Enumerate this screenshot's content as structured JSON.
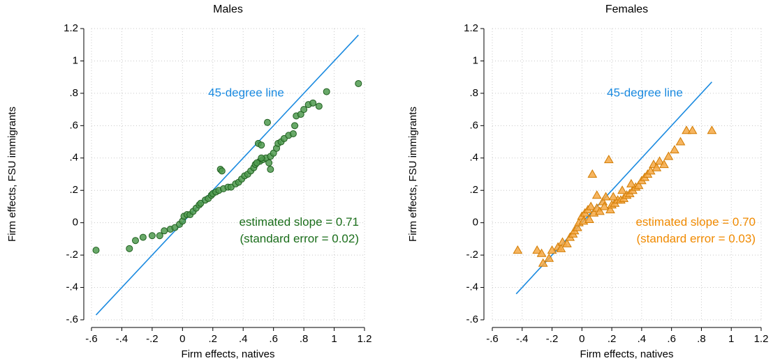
{
  "chart_data": [
    {
      "type": "scatter",
      "title": "Males",
      "xlabel": "Firm effects, natives",
      "ylabel": "Firm effects, FSU immigrants",
      "marker": "circle",
      "color": "#4f9a4f",
      "edge_color": "#1f5f1f",
      "text_color": "#1b6e1b",
      "grid": true,
      "xlim": [
        -0.6,
        1.2
      ],
      "ylim": [
        -0.6,
        1.2
      ],
      "xticks": [
        {
          "value": -0.6,
          "label": "-.6"
        },
        {
          "value": -0.4,
          "label": "-.4"
        },
        {
          "value": -0.2,
          "label": "-.2"
        },
        0,
        {
          "value": 0.2,
          "label": ".2"
        },
        {
          "value": 0.4,
          "label": ".4"
        },
        {
          "value": 0.6,
          "label": ".6"
        },
        {
          "value": 0.8,
          "label": ".8"
        },
        1,
        1.2
      ],
      "yticks": [
        {
          "value": -0.6,
          "label": "-.6"
        },
        {
          "value": -0.4,
          "label": "-.4"
        },
        {
          "value": -0.2,
          "label": "-.2"
        },
        0,
        {
          "value": 0.2,
          "label": ".2"
        },
        {
          "value": 0.4,
          "label": ".4"
        },
        {
          "value": 0.6,
          "label": ".6"
        },
        {
          "value": 0.8,
          "label": ".8"
        },
        1,
        1.2
      ],
      "x": [
        -0.57,
        -0.35,
        -0.31,
        -0.26,
        -0.2,
        -0.15,
        -0.12,
        -0.08,
        -0.05,
        -0.02,
        0,
        0.01,
        0.03,
        0.05,
        0.07,
        0.09,
        0.11,
        0.12,
        0.15,
        0.17,
        0.19,
        0.2,
        0.22,
        0.24,
        0.25,
        0.26,
        0.27,
        0.3,
        0.32,
        0.35,
        0.37,
        0.39,
        0.41,
        0.43,
        0.45,
        0.47,
        0.48,
        0.5,
        0.52,
        0.51,
        0.53,
        0.55,
        0.56,
        0.57,
        0.58,
        0.6,
        0.62,
        0.63,
        0.65,
        0.67,
        0.7,
        0.73,
        0.74,
        0.75,
        0.78,
        0.8,
        0.83,
        0.86,
        0.9,
        0.95,
        1.16,
        0.52,
        0.58,
        0.49
      ],
      "values": [
        -0.17,
        -0.16,
        -0.11,
        -0.09,
        -0.08,
        -0.08,
        -0.05,
        -0.04,
        -0.03,
        -0.01,
        0.01,
        0.04,
        0.05,
        0.05,
        0.07,
        0.09,
        0.11,
        0.12,
        0.14,
        0.15,
        0.17,
        0.18,
        0.19,
        0.2,
        0.33,
        0.32,
        0.21,
        0.22,
        0.22,
        0.24,
        0.25,
        0.27,
        0.29,
        0.3,
        0.32,
        0.34,
        0.36,
        0.49,
        0.48,
        0.38,
        0.39,
        0.4,
        0.62,
        0.37,
        0.41,
        0.43,
        0.46,
        0.49,
        0.5,
        0.52,
        0.54,
        0.55,
        0.6,
        0.66,
        0.67,
        0.7,
        0.73,
        0.74,
        0.72,
        0.81,
        0.86,
        0.4,
        0.33,
        0.37
      ],
      "reference_line": {
        "label": "45-degree line",
        "color": "#1a8ae0",
        "x": [
          -0.57,
          1.16
        ],
        "y": [
          -0.57,
          1.16
        ]
      },
      "annotations": [
        "estimated slope = 0.71",
        "(standard error = 0.02)"
      ]
    },
    {
      "type": "scatter",
      "title": "Females",
      "xlabel": "Firm effects, natives",
      "ylabel": "Firm effects, FSU immigrants",
      "marker": "triangle",
      "color": "#f5a844",
      "edge_color": "#d27b00",
      "text_color": "#f08a00",
      "grid": true,
      "xlim": [
        -0.6,
        1.2
      ],
      "ylim": [
        -0.6,
        1.2
      ],
      "xticks": [
        {
          "value": -0.6,
          "label": "-.6"
        },
        {
          "value": -0.4,
          "label": "-.4"
        },
        {
          "value": -0.2,
          "label": "-.2"
        },
        0,
        {
          "value": 0.2,
          "label": ".2"
        },
        {
          "value": 0.4,
          "label": ".4"
        },
        {
          "value": 0.6,
          "label": ".6"
        },
        {
          "value": 0.8,
          "label": ".8"
        },
        1,
        1.2
      ],
      "yticks": [
        {
          "value": -0.6,
          "label": "-.6"
        },
        {
          "value": -0.4,
          "label": "-.4"
        },
        {
          "value": -0.2,
          "label": "-.2"
        },
        0,
        {
          "value": 0.2,
          "label": ".2"
        },
        {
          "value": 0.4,
          "label": ".4"
        },
        {
          "value": 0.6,
          "label": ".6"
        },
        {
          "value": 0.8,
          "label": ".8"
        },
        1,
        1.2
      ],
      "x": [
        -0.43,
        -0.3,
        -0.27,
        -0.26,
        -0.22,
        -0.2,
        -0.16,
        -0.14,
        -0.13,
        -0.1,
        -0.08,
        -0.06,
        -0.05,
        -0.03,
        -0.02,
        0,
        0.01,
        0.02,
        0.04,
        0.05,
        0.06,
        0.07,
        0.08,
        0.1,
        0.1,
        0.12,
        0.14,
        0.15,
        0.16,
        0.18,
        0.19,
        0.2,
        0.22,
        0.24,
        0.26,
        0.28,
        0.3,
        0.32,
        0.34,
        0.36,
        0.38,
        0.4,
        0.42,
        0.44,
        0.46,
        0.48,
        0.5,
        0.52,
        0.55,
        0.58,
        0.62,
        0.66,
        0.7,
        0.74,
        0.87,
        0.27,
        0.33,
        0.21
      ],
      "values": [
        -0.17,
        -0.17,
        -0.19,
        -0.25,
        -0.22,
        -0.17,
        -0.15,
        -0.16,
        -0.12,
        -0.13,
        -0.09,
        -0.07,
        -0.05,
        -0.03,
        0,
        0.04,
        0.01,
        0.06,
        0.08,
        0.02,
        0.1,
        0.3,
        0.06,
        0.09,
        0.17,
        0.07,
        0.13,
        0.1,
        0.16,
        0.39,
        0.08,
        0.11,
        0.12,
        0.14,
        0.14,
        0.15,
        0.17,
        0.18,
        0.2,
        0.22,
        0.23,
        0.26,
        0.28,
        0.3,
        0.32,
        0.36,
        0.34,
        0.38,
        0.36,
        0.41,
        0.45,
        0.5,
        0.57,
        0.57,
        0.57,
        0.2,
        0.24,
        0.16
      ],
      "reference_line": {
        "label": "45-degree line",
        "color": "#1a8ae0",
        "x": [
          -0.44,
          0.87
        ],
        "y": [
          -0.44,
          0.87
        ]
      },
      "annotations": [
        "estimated slope = 0.70",
        "(standard error = 0.03)"
      ]
    }
  ]
}
